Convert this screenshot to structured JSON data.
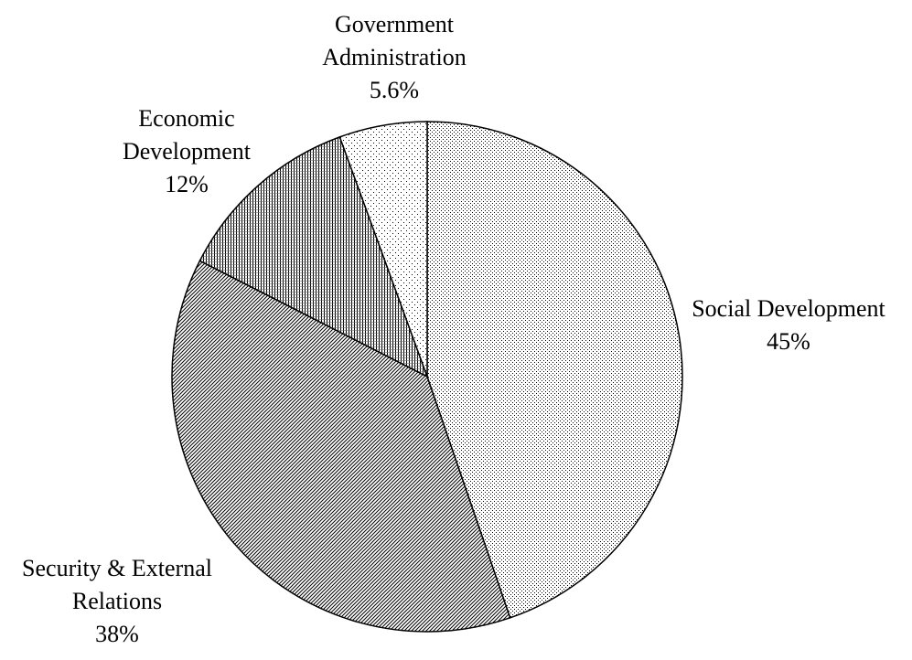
{
  "chart_data": {
    "type": "pie",
    "title": "",
    "slices": [
      {
        "label_lines": [
          "Social Development"
        ],
        "value": 45,
        "value_label": "45%",
        "pattern": "sparse-dots"
      },
      {
        "label_lines": [
          "Security & External",
          "Relations"
        ],
        "value": 38,
        "value_label": "38%",
        "pattern": "diagonal-hatch"
      },
      {
        "label_lines": [
          "Economic",
          "Development"
        ],
        "value": 12,
        "value_label": "12%",
        "pattern": "vertical-lines"
      },
      {
        "label_lines": [
          "Government",
          "Administration"
        ],
        "value": 5.6,
        "value_label": "5.6%",
        "pattern": "fine-dots"
      }
    ],
    "start_angle": "12 o'clock",
    "direction": "clockwise",
    "colors": {
      "stroke": "#000000",
      "pattern": "#000000",
      "background": "#ffffff"
    }
  }
}
